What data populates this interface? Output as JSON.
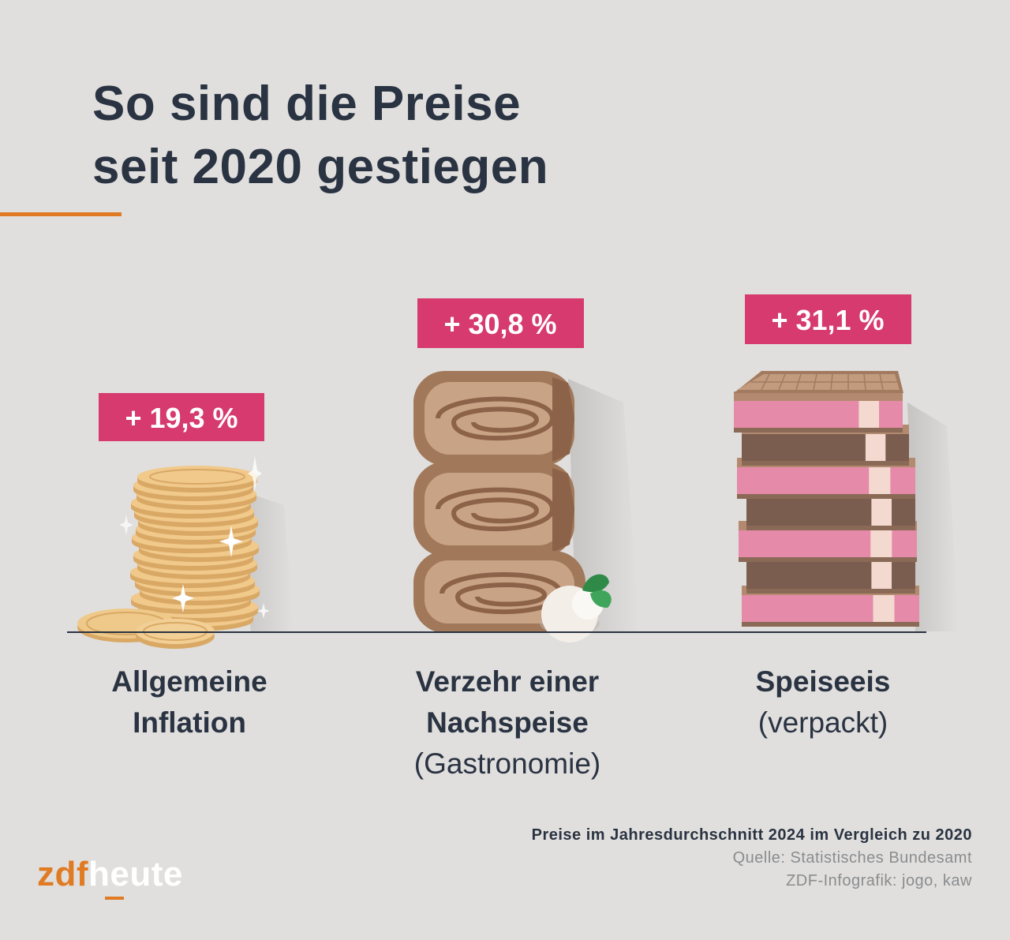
{
  "title": {
    "line1": "So sind die Preise",
    "line2": "seit 2020 gestiegen"
  },
  "chart_data": {
    "type": "bar",
    "title": "So sind die Preise seit 2020 gestiegen",
    "unit": "%",
    "categories": [
      [
        "Allgemeine",
        "Inflation",
        ""
      ],
      [
        "Verzehr einer",
        "Nachspeise",
        "(Gastronomie)"
      ],
      [
        "Speiseeis",
        "",
        "(verpackt)"
      ]
    ],
    "values": [
      19.3,
      30.8,
      31.1
    ],
    "value_labels": [
      "+ 19,3 %",
      "+ 30,8 %",
      "+ 31,1 %"
    ],
    "illustrations": [
      "coin-stack",
      "strudel-roll-stack",
      "ice-cream-sandwich-stack"
    ],
    "colors": {
      "badge": "#d63a6e",
      "baseline": "#2a3342",
      "accent": "#e07b24"
    }
  },
  "footer": {
    "note": "Preise im Jahresdurchschnitt 2024 im Vergleich zu 2020",
    "source": "Quelle: Statistisches Bundesamt",
    "credit": "ZDF-Infografik: jogo, kaw"
  },
  "logo": {
    "part1": "zdf",
    "part2": "heute"
  }
}
